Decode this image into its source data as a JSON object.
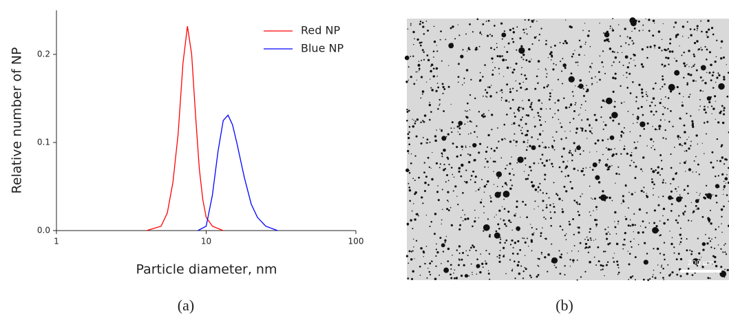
{
  "chart_data": {
    "type": "line",
    "xlabel": "Particle diameter, nm",
    "ylabel": "Relative number of NP",
    "xscale": "log",
    "xlim": [
      1,
      100
    ],
    "xticks": [
      1,
      10,
      100
    ],
    "ylim": [
      0,
      0.25
    ],
    "yticks": [
      {
        "value": 0,
        "label": "0.0"
      },
      {
        "value": 0.1,
        "label": "0.1"
      },
      {
        "value": 0.2,
        "label": "0.2"
      }
    ],
    "legend": "upper right",
    "series": [
      {
        "name": "Red NP",
        "color": "#ff0000",
        "x": [
          4,
          5,
          5.5,
          6,
          6.5,
          7,
          7.5,
          8,
          8.5,
          9,
          9.5,
          10,
          11,
          13
        ],
        "values": [
          0,
          0.005,
          0.02,
          0.055,
          0.11,
          0.19,
          0.232,
          0.2,
          0.13,
          0.07,
          0.035,
          0.015,
          0.005,
          0
        ]
      },
      {
        "name": "Blue NP",
        "color": "#0000ff",
        "x": [
          8.8,
          10,
          11,
          12,
          13,
          14,
          15,
          16,
          18,
          20,
          22,
          25,
          30
        ],
        "values": [
          0,
          0.005,
          0.04,
          0.09,
          0.125,
          0.131,
          0.12,
          0.1,
          0.06,
          0.03,
          0.015,
          0.005,
          0
        ]
      }
    ]
  },
  "figure": {
    "panel_a": "(a)",
    "panel_b": "(b)",
    "scale_bar": "200 µm"
  }
}
